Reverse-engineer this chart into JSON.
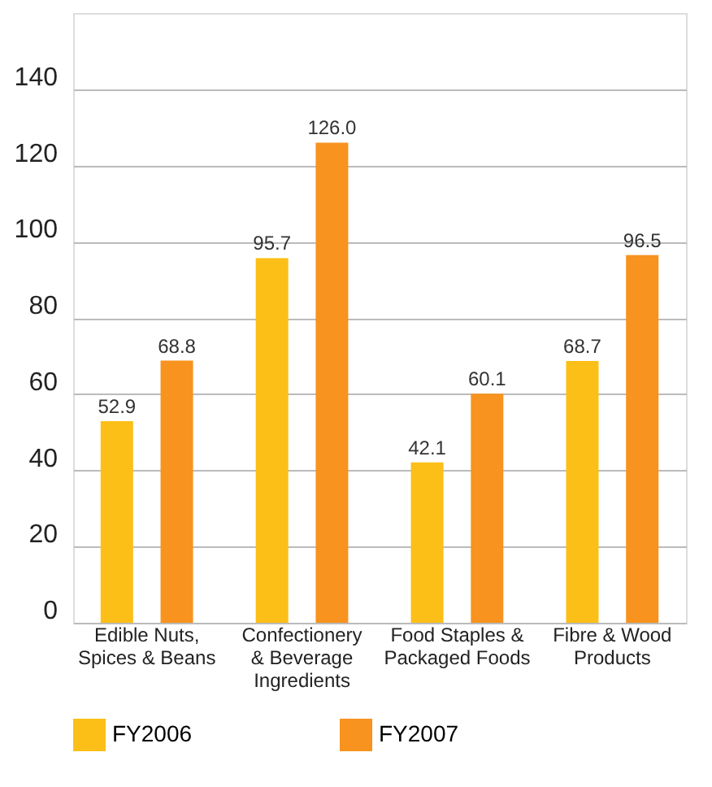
{
  "chart_data": {
    "type": "bar",
    "categories": [
      "Edible Nuts, Spices & Beans",
      "Confectionery & Beverage Ingredients",
      "Food Staples & Packaged Foods",
      "Fibre & Wood Products"
    ],
    "series": [
      {
        "name": "FY2006",
        "color": "#fcbf17",
        "values": [
          52.9,
          95.7,
          42.1,
          68.7
        ]
      },
      {
        "name": "FY2007",
        "color": "#f7931e",
        "values": [
          68.8,
          126.0,
          60.1,
          96.5
        ],
        "value_labels": [
          "68.8",
          "126.0",
          "60.1",
          "96.5"
        ]
      }
    ],
    "ylim": [
      0,
      160
    ],
    "yticks": [
      0,
      20,
      40,
      60,
      80,
      100,
      120,
      140
    ],
    "grid": "y",
    "legend": "bottom",
    "data_labels": true
  }
}
